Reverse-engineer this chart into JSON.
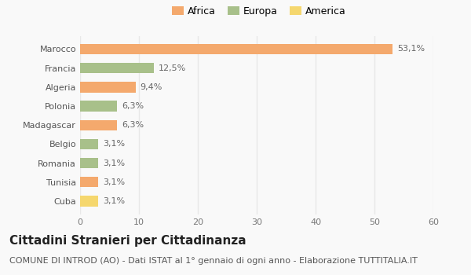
{
  "categories": [
    "Marocco",
    "Francia",
    "Algeria",
    "Polonia",
    "Madagascar",
    "Belgio",
    "Romania",
    "Tunisia",
    "Cuba"
  ],
  "values": [
    53.1,
    12.5,
    9.4,
    6.3,
    6.3,
    3.1,
    3.1,
    3.1,
    3.1
  ],
  "labels": [
    "53,1%",
    "12,5%",
    "9,4%",
    "6,3%",
    "6,3%",
    "3,1%",
    "3,1%",
    "3,1%",
    "3,1%"
  ],
  "colors": [
    "#F4A96D",
    "#A8C08A",
    "#F4A96D",
    "#A8C08A",
    "#F4A96D",
    "#A8C08A",
    "#A8C08A",
    "#F4A96D",
    "#F5D76E"
  ],
  "legend_labels": [
    "Africa",
    "Europa",
    "America"
  ],
  "legend_colors": [
    "#F4A96D",
    "#A8C08A",
    "#F5D76E"
  ],
  "title": "Cittadini Stranieri per Cittadinanza",
  "subtitle": "COMUNE DI INTROD (AO) - Dati ISTAT al 1° gennaio di ogni anno - Elaborazione TUTTITALIA.IT",
  "xlim": [
    0,
    60
  ],
  "xticks": [
    0,
    10,
    20,
    30,
    40,
    50,
    60
  ],
  "background_color": "#f9f9f9",
  "grid_color": "#e8e8e8",
  "title_fontsize": 11,
  "subtitle_fontsize": 8,
  "label_fontsize": 8,
  "tick_fontsize": 8,
  "legend_fontsize": 9
}
